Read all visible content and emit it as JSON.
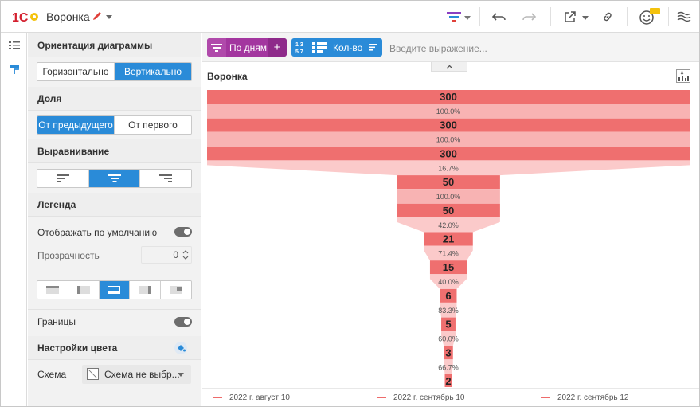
{
  "header": {
    "title": "Воронка",
    "icons": [
      "filter-icon",
      "undo-icon",
      "redo-icon",
      "export-icon",
      "link-icon",
      "feedback-icon",
      "menu-icon"
    ]
  },
  "sidebar": {
    "orientation": {
      "label": "Ориентация диаграммы",
      "options": [
        "Горизонтально",
        "Вертикально"
      ],
      "selected": "Вертикально"
    },
    "share": {
      "label": "Доля",
      "options": [
        "От предыдущего",
        "От первого"
      ],
      "selected": "От предыдущего"
    },
    "align": {
      "label": "Выравнивание",
      "selected_index": 1
    },
    "legend": {
      "label": "Легенда",
      "show_default_label": "Отображать по умолчанию",
      "show_default": true,
      "opacity_label": "Прозрачность",
      "opacity_value": "0",
      "position_selected_index": 2
    },
    "borders": {
      "label": "Границы",
      "enabled": true
    },
    "colors": {
      "label": "Настройки цвета",
      "scheme_label": "Схема",
      "scheme_value": "Схема не выбр..."
    }
  },
  "toolbar": {
    "by_days": "По дням",
    "quantity": "Кол-во",
    "expression_placeholder": "Введите выражение..."
  },
  "colors": {
    "accent": "#2a8bd8",
    "chip_purple": "#a3369f",
    "bar_dark": "#ef6f6f",
    "bar_light": "#f8b3b3",
    "connector": "#fbcaca"
  },
  "chart_data": {
    "type": "funnel",
    "title": "Воронка",
    "values": [
      300,
      300,
      300,
      50,
      50,
      21,
      15,
      6,
      5,
      3,
      2
    ],
    "percentages": [
      "100.0%",
      "100.0%",
      "16.7%",
      "100.0%",
      "42.0%",
      "71.4%",
      "40.0%",
      "83.3%",
      "60.0%",
      "66.7%"
    ],
    "legend": [
      "2022 г. август 10",
      "2022 г. сентябрь 10",
      "2022 г. сентябрь 12"
    ]
  }
}
